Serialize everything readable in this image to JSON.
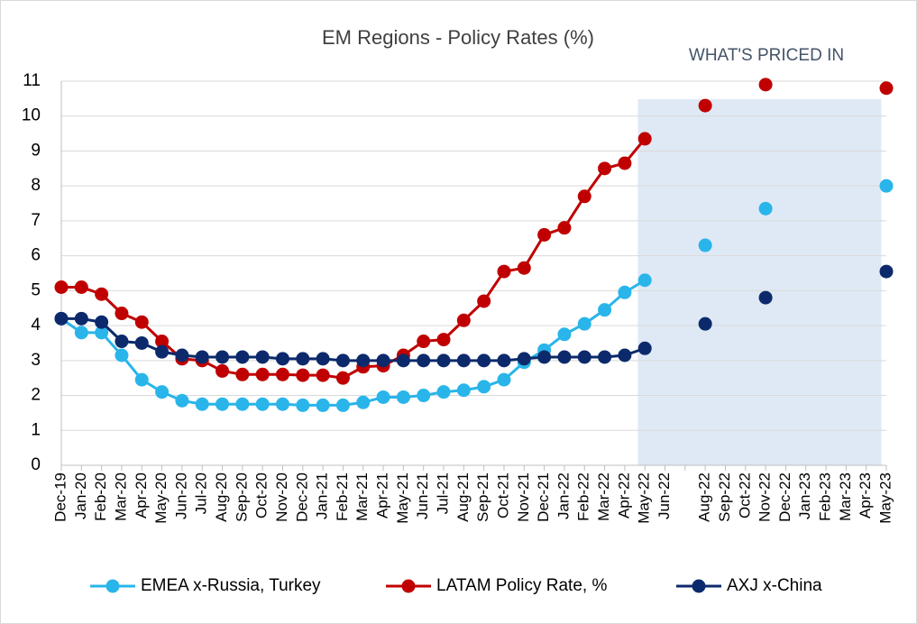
{
  "chart_data": {
    "type": "line",
    "title": "EM Regions - Policy Rates (%)",
    "annotation": "WHAT'S PRICED IN",
    "categories": [
      "Dec-19",
      "Jan-20",
      "Feb-20",
      "Mar-20",
      "Apr-20",
      "May-20",
      "Jun-20",
      "Jul-20",
      "Aug-20",
      "Sep-20",
      "Oct-20",
      "Nov-20",
      "Dec-20",
      "Jan-21",
      "Feb-21",
      "Mar-21",
      "Apr-21",
      "May-21",
      "Jun-21",
      "Jul-21",
      "Aug-21",
      "Sep-21",
      "Oct-21",
      "Nov-21",
      "Dec-21",
      "Jan-22",
      "Feb-22",
      "Mar-22",
      "Apr-22",
      "May-22",
      "Jun-22",
      null,
      "Aug-22",
      "Sep-22",
      "Oct-22",
      "Nov-22",
      "Dec-22",
      "Jan-23",
      "Feb-23",
      "Mar-23",
      "Apr-23",
      "May-23"
    ],
    "series": [
      {
        "name": "EMEA x-Russia, Turkey",
        "color": "#29b5ea",
        "values": [
          4.2,
          3.8,
          3.8,
          3.15,
          2.45,
          2.1,
          1.85,
          1.75,
          1.75,
          1.75,
          1.75,
          1.75,
          1.72,
          1.72,
          1.72,
          1.8,
          1.95,
          1.95,
          2.0,
          2.1,
          2.15,
          2.25,
          2.45,
          2.95,
          3.3,
          3.75,
          4.05,
          4.45,
          4.95,
          5.3,
          null,
          null,
          6.3,
          null,
          null,
          7.35,
          null,
          null,
          null,
          null,
          null,
          8.0
        ]
      },
      {
        "name": "LATAM Policy Rate, %",
        "color": "#c00000",
        "values": [
          5.1,
          5.1,
          4.9,
          4.35,
          4.1,
          3.55,
          3.05,
          3.0,
          2.7,
          2.6,
          2.6,
          2.6,
          2.58,
          2.58,
          2.5,
          2.82,
          2.85,
          3.15,
          3.55,
          3.6,
          4.15,
          4.7,
          5.55,
          5.65,
          6.6,
          6.8,
          7.7,
          8.5,
          8.65,
          9.35,
          null,
          null,
          10.3,
          null,
          null,
          10.9,
          null,
          null,
          null,
          null,
          null,
          10.8
        ]
      },
      {
        "name": "AXJ x-China",
        "color": "#0c2a6b",
        "values": [
          4.2,
          4.2,
          4.1,
          3.55,
          3.5,
          3.25,
          3.15,
          3.1,
          3.1,
          3.1,
          3.1,
          3.05,
          3.05,
          3.05,
          3.0,
          3.0,
          3.0,
          3.0,
          3.0,
          3.0,
          3.0,
          3.0,
          3.0,
          3.05,
          3.1,
          3.1,
          3.1,
          3.1,
          3.15,
          3.35,
          null,
          null,
          4.05,
          null,
          null,
          4.8,
          null,
          null,
          null,
          null,
          null,
          5.55
        ]
      }
    ],
    "ylim": [
      0,
      11
    ],
    "yticks": [
      0,
      1,
      2,
      3,
      4,
      5,
      6,
      7,
      8,
      9,
      10,
      11
    ],
    "grid": true,
    "legend": "bottom"
  }
}
